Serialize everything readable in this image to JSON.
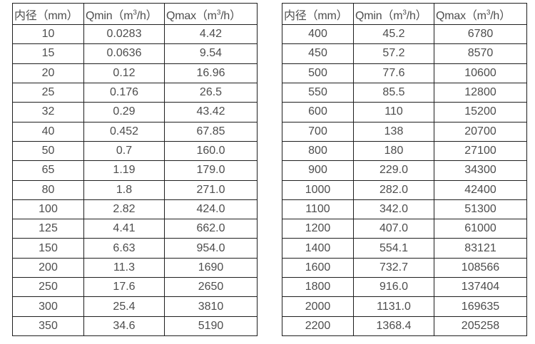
{
  "page": {
    "background_color": "#ffffff",
    "border_color": "#1f1f1f",
    "text_color": "#4d4d4d"
  },
  "tables": [
    {
      "name": "flow-range-table-small-diameters",
      "headers": [
        {
          "pre": "内径（mm）",
          "sup": "",
          "post": ""
        },
        {
          "pre": "Qmin（m",
          "sup": "3",
          "post": "/h）"
        },
        {
          "pre": "Qmax（m",
          "sup": "3",
          "post": "/h）"
        }
      ],
      "rows": [
        [
          "10",
          "0.0283",
          "4.42"
        ],
        [
          "15",
          "0.0636",
          "9.54"
        ],
        [
          "20",
          "0.12",
          "16.96"
        ],
        [
          "25",
          "0.176",
          "26.5"
        ],
        [
          "32",
          "0.29",
          "43.42"
        ],
        [
          "40",
          "0.452",
          "67.85"
        ],
        [
          "50",
          "0.7",
          "160.0"
        ],
        [
          "65",
          "1.19",
          "179.0"
        ],
        [
          "80",
          "1.8",
          "271.0"
        ],
        [
          "100",
          "2.82",
          "424.0"
        ],
        [
          "125",
          "4.41",
          "662.0"
        ],
        [
          "150",
          "6.63",
          "954.0"
        ],
        [
          "200",
          "11.3",
          "1690"
        ],
        [
          "250",
          "17.6",
          "2650"
        ],
        [
          "300",
          "25.4",
          "3810"
        ],
        [
          "350",
          "34.6",
          "5190"
        ]
      ]
    },
    {
      "name": "flow-range-table-large-diameters",
      "headers": [
        {
          "pre": "内径（mm）",
          "sup": "",
          "post": ""
        },
        {
          "pre": "Qmin（m",
          "sup": "3",
          "post": "/h）"
        },
        {
          "pre": "Qmax（m",
          "sup": "3",
          "post": "/h）"
        }
      ],
      "rows": [
        [
          "400",
          "45.2",
          "6780"
        ],
        [
          "450",
          "57.2",
          "8570"
        ],
        [
          "500",
          "77.6",
          "10600"
        ],
        [
          "550",
          "85.5",
          "12800"
        ],
        [
          "600",
          "110",
          "15200"
        ],
        [
          "700",
          "138",
          "20700"
        ],
        [
          "800",
          "180",
          "27100"
        ],
        [
          "900",
          "229.0",
          "34300"
        ],
        [
          "1000",
          "282.0",
          "42400"
        ],
        [
          "1100",
          "342.0",
          "51300"
        ],
        [
          "1200",
          "407.0",
          "61000"
        ],
        [
          "1400",
          "554.1",
          "83121"
        ],
        [
          "1600",
          "732.7",
          "108566"
        ],
        [
          "1800",
          "916.0",
          "137404"
        ],
        [
          "2000",
          "1131.0",
          "169635"
        ],
        [
          "2200",
          "1368.4",
          "205258"
        ]
      ]
    }
  ]
}
